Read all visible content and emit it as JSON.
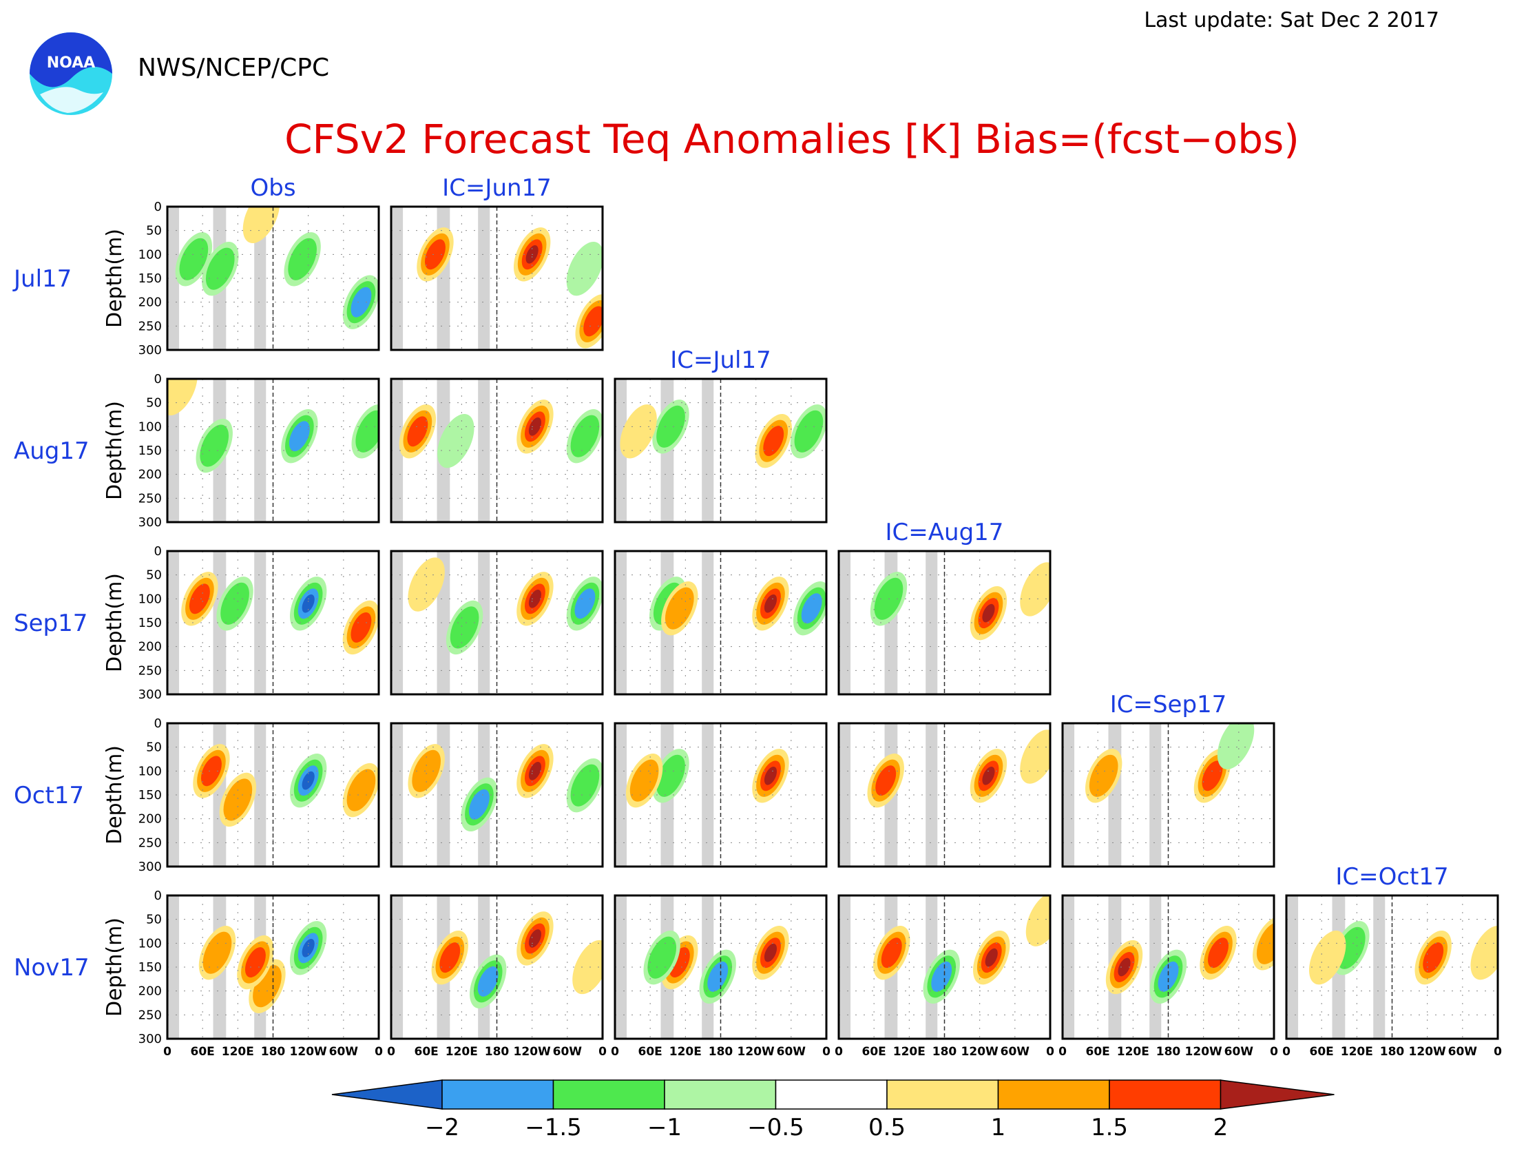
{
  "header": {
    "last_update": "Last update: Sat Dec 2 2017",
    "org": "NWS/NCEP/CPC",
    "logo_text": "NOAA"
  },
  "chart_data": {
    "type": "heatmap",
    "title": "CFSv2 Forecast Teq Anomalies [K] Bias=(fcst−obs)",
    "ylabel": "Depth(m)",
    "ylim": [
      0,
      300
    ],
    "y_ticks": [
      "0",
      "50",
      "100",
      "150",
      "200",
      "250",
      "300"
    ],
    "x_ticks": [
      "0",
      "60E",
      "120E",
      "180",
      "120W",
      "60W",
      "0"
    ],
    "columns": [
      "Obs",
      "IC=Jun17",
      "IC=Jul17",
      "IC=Aug17",
      "IC=Sep17",
      "IC=Oct17"
    ],
    "rows": [
      "Jul17",
      "Aug17",
      "Sep17",
      "Oct17",
      "Nov17"
    ],
    "colorbar": {
      "labels": [
        "−2",
        "−1.5",
        "−1",
        "−0.5",
        "0.5",
        "1",
        "1.5",
        "2"
      ],
      "colors": [
        "#1c62c8",
        "#3aa0f0",
        "#4ee84e",
        "#aef5a4",
        "#ffffff",
        "#ffe57a",
        "#ffa300",
        "#ff3d00",
        "#a8201a"
      ]
    },
    "panels": [
      {
        "row": 0,
        "col": 0,
        "features": [
          {
            "x": 45,
            "y": 110,
            "v": -1.2
          },
          {
            "x": 90,
            "y": 130,
            "v": -1.0
          },
          {
            "x": 230,
            "y": 110,
            "v": -1.1
          },
          {
            "x": 330,
            "y": 200,
            "v": -1.6
          },
          {
            "x": 160,
            "y": 20,
            "v": 0.7
          }
        ]
      },
      {
        "row": 0,
        "col": 1,
        "features": [
          {
            "x": 240,
            "y": 100,
            "v": 2.1
          },
          {
            "x": 75,
            "y": 100,
            "v": 1.6
          },
          {
            "x": 345,
            "y": 240,
            "v": 1.5
          },
          {
            "x": 330,
            "y": 130,
            "v": -0.8
          }
        ]
      },
      {
        "row": 1,
        "col": 0,
        "features": [
          {
            "x": 80,
            "y": 140,
            "v": -1.3
          },
          {
            "x": 225,
            "y": 120,
            "v": -1.8
          },
          {
            "x": 345,
            "y": 110,
            "v": -1.2
          },
          {
            "x": 20,
            "y": 20,
            "v": 0.6
          }
        ]
      },
      {
        "row": 1,
        "col": 1,
        "features": [
          {
            "x": 45,
            "y": 110,
            "v": 1.8
          },
          {
            "x": 245,
            "y": 100,
            "v": 2.1
          },
          {
            "x": 330,
            "y": 120,
            "v": -1.4
          },
          {
            "x": 110,
            "y": 130,
            "v": -0.8
          }
        ]
      },
      {
        "row": 1,
        "col": 2,
        "features": [
          {
            "x": 270,
            "y": 130,
            "v": 1.8
          },
          {
            "x": 95,
            "y": 100,
            "v": -1.2
          },
          {
            "x": 330,
            "y": 110,
            "v": -1.3
          },
          {
            "x": 40,
            "y": 110,
            "v": 0.7
          }
        ]
      },
      {
        "row": 2,
        "col": 0,
        "features": [
          {
            "x": 240,
            "y": 110,
            "v": -2.1
          },
          {
            "x": 55,
            "y": 100,
            "v": 1.6
          },
          {
            "x": 115,
            "y": 110,
            "v": -1.3
          },
          {
            "x": 330,
            "y": 160,
            "v": 1.5
          }
        ]
      },
      {
        "row": 2,
        "col": 1,
        "features": [
          {
            "x": 245,
            "y": 100,
            "v": 2.2
          },
          {
            "x": 125,
            "y": 160,
            "v": -1.2
          },
          {
            "x": 330,
            "y": 110,
            "v": -1.5
          },
          {
            "x": 60,
            "y": 70,
            "v": 0.8
          }
        ]
      },
      {
        "row": 2,
        "col": 2,
        "features": [
          {
            "x": 265,
            "y": 110,
            "v": 2.1
          },
          {
            "x": 90,
            "y": 110,
            "v": -1.2
          },
          {
            "x": 335,
            "y": 120,
            "v": -1.5
          },
          {
            "x": 110,
            "y": 120,
            "v": 1.0
          }
        ]
      },
      {
        "row": 2,
        "col": 3,
        "features": [
          {
            "x": 255,
            "y": 130,
            "v": 2.0
          },
          {
            "x": 85,
            "y": 100,
            "v": -1.2
          },
          {
            "x": 340,
            "y": 80,
            "v": 0.7
          }
        ]
      },
      {
        "row": 3,
        "col": 0,
        "features": [
          {
            "x": 240,
            "y": 120,
            "v": -2.1
          },
          {
            "x": 75,
            "y": 100,
            "v": 1.6
          },
          {
            "x": 120,
            "y": 160,
            "v": 1.0
          },
          {
            "x": 330,
            "y": 140,
            "v": 1.4
          }
        ]
      },
      {
        "row": 3,
        "col": 1,
        "features": [
          {
            "x": 245,
            "y": 100,
            "v": 2.2
          },
          {
            "x": 150,
            "y": 170,
            "v": -1.6
          },
          {
            "x": 60,
            "y": 100,
            "v": 1.2
          },
          {
            "x": 330,
            "y": 130,
            "v": -1.3
          }
        ]
      },
      {
        "row": 3,
        "col": 2,
        "features": [
          {
            "x": 265,
            "y": 110,
            "v": 2.1
          },
          {
            "x": 95,
            "y": 110,
            "v": -1.1
          },
          {
            "x": 50,
            "y": 120,
            "v": 1.0
          }
        ]
      },
      {
        "row": 3,
        "col": 3,
        "features": [
          {
            "x": 255,
            "y": 110,
            "v": 2.0
          },
          {
            "x": 80,
            "y": 120,
            "v": 1.7
          },
          {
            "x": 340,
            "y": 70,
            "v": 0.7
          }
        ]
      },
      {
        "row": 3,
        "col": 4,
        "features": [
          {
            "x": 255,
            "y": 110,
            "v": 1.8
          },
          {
            "x": 295,
            "y": 40,
            "v": -0.9
          },
          {
            "x": 70,
            "y": 110,
            "v": 1.1
          }
        ]
      },
      {
        "row": 4,
        "col": 0,
        "features": [
          {
            "x": 240,
            "y": 110,
            "v": -2.1
          },
          {
            "x": 170,
            "y": 190,
            "v": 1.3
          },
          {
            "x": 150,
            "y": 140,
            "v": 1.6
          },
          {
            "x": 85,
            "y": 120,
            "v": 1.2
          }
        ]
      },
      {
        "row": 4,
        "col": 1,
        "features": [
          {
            "x": 245,
            "y": 90,
            "v": 2.2
          },
          {
            "x": 165,
            "y": 180,
            "v": -1.7
          },
          {
            "x": 100,
            "y": 130,
            "v": 1.6
          },
          {
            "x": 340,
            "y": 150,
            "v": 0.7
          }
        ]
      },
      {
        "row": 4,
        "col": 2,
        "features": [
          {
            "x": 265,
            "y": 120,
            "v": 2.1
          },
          {
            "x": 175,
            "y": 170,
            "v": -1.7
          },
          {
            "x": 110,
            "y": 140,
            "v": 1.8
          },
          {
            "x": 80,
            "y": 130,
            "v": -1.2
          }
        ]
      },
      {
        "row": 4,
        "col": 3,
        "features": [
          {
            "x": 260,
            "y": 130,
            "v": 2.1
          },
          {
            "x": 175,
            "y": 170,
            "v": -1.6
          },
          {
            "x": 90,
            "y": 120,
            "v": 1.7
          },
          {
            "x": 350,
            "y": 50,
            "v": 0.8
          }
        ]
      },
      {
        "row": 4,
        "col": 4,
        "features": [
          {
            "x": 265,
            "y": 120,
            "v": 1.9
          },
          {
            "x": 105,
            "y": 150,
            "v": 2.1
          },
          {
            "x": 180,
            "y": 170,
            "v": -1.6
          },
          {
            "x": 355,
            "y": 100,
            "v": 1.4
          }
        ]
      },
      {
        "row": 4,
        "col": 5,
        "features": [
          {
            "x": 250,
            "y": 130,
            "v": 1.9
          },
          {
            "x": 110,
            "y": 110,
            "v": -1.1
          },
          {
            "x": 345,
            "y": 120,
            "v": 0.8
          },
          {
            "x": 70,
            "y": 130,
            "v": 0.7
          }
        ]
      }
    ]
  }
}
